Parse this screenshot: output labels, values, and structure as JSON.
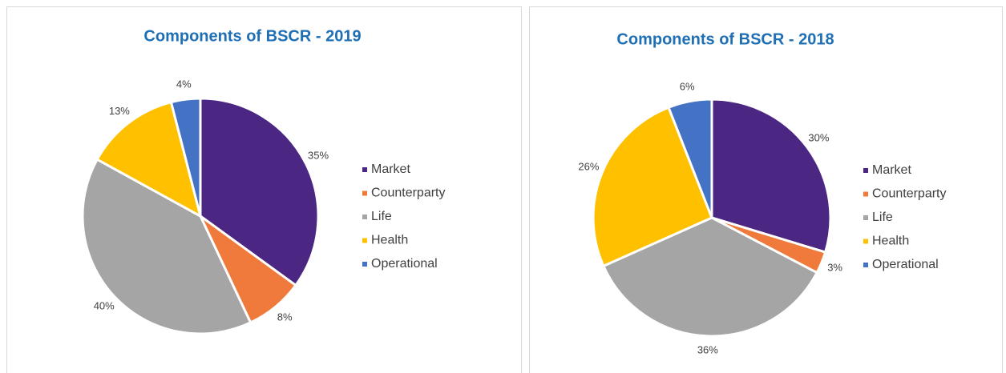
{
  "chart_data": [
    {
      "type": "pie",
      "title": "Components of BSCR - 2019",
      "categories": [
        "Market",
        "Counterparty",
        "Life",
        "Health",
        "Operational"
      ],
      "values": [
        35,
        8,
        40,
        13,
        4
      ],
      "value_labels": [
        "35%",
        "8%",
        "40%",
        "13%",
        "4%"
      ],
      "colors": [
        "#4b2683",
        "#f07a3b",
        "#a5a5a5",
        "#ffc000",
        "#4472c4"
      ],
      "legend": "right"
    },
    {
      "type": "pie",
      "title": "Components of BSCR - 2018",
      "categories": [
        "Market",
        "Counterparty",
        "Life",
        "Health",
        "Operational"
      ],
      "values": [
        30,
        3,
        36,
        26,
        6
      ],
      "value_labels": [
        "30%",
        "3%",
        "36%",
        "26%",
        "6%"
      ],
      "colors": [
        "#4b2683",
        "#f07a3b",
        "#a5a5a5",
        "#ffc000",
        "#4472c4"
      ],
      "legend": "right"
    }
  ]
}
